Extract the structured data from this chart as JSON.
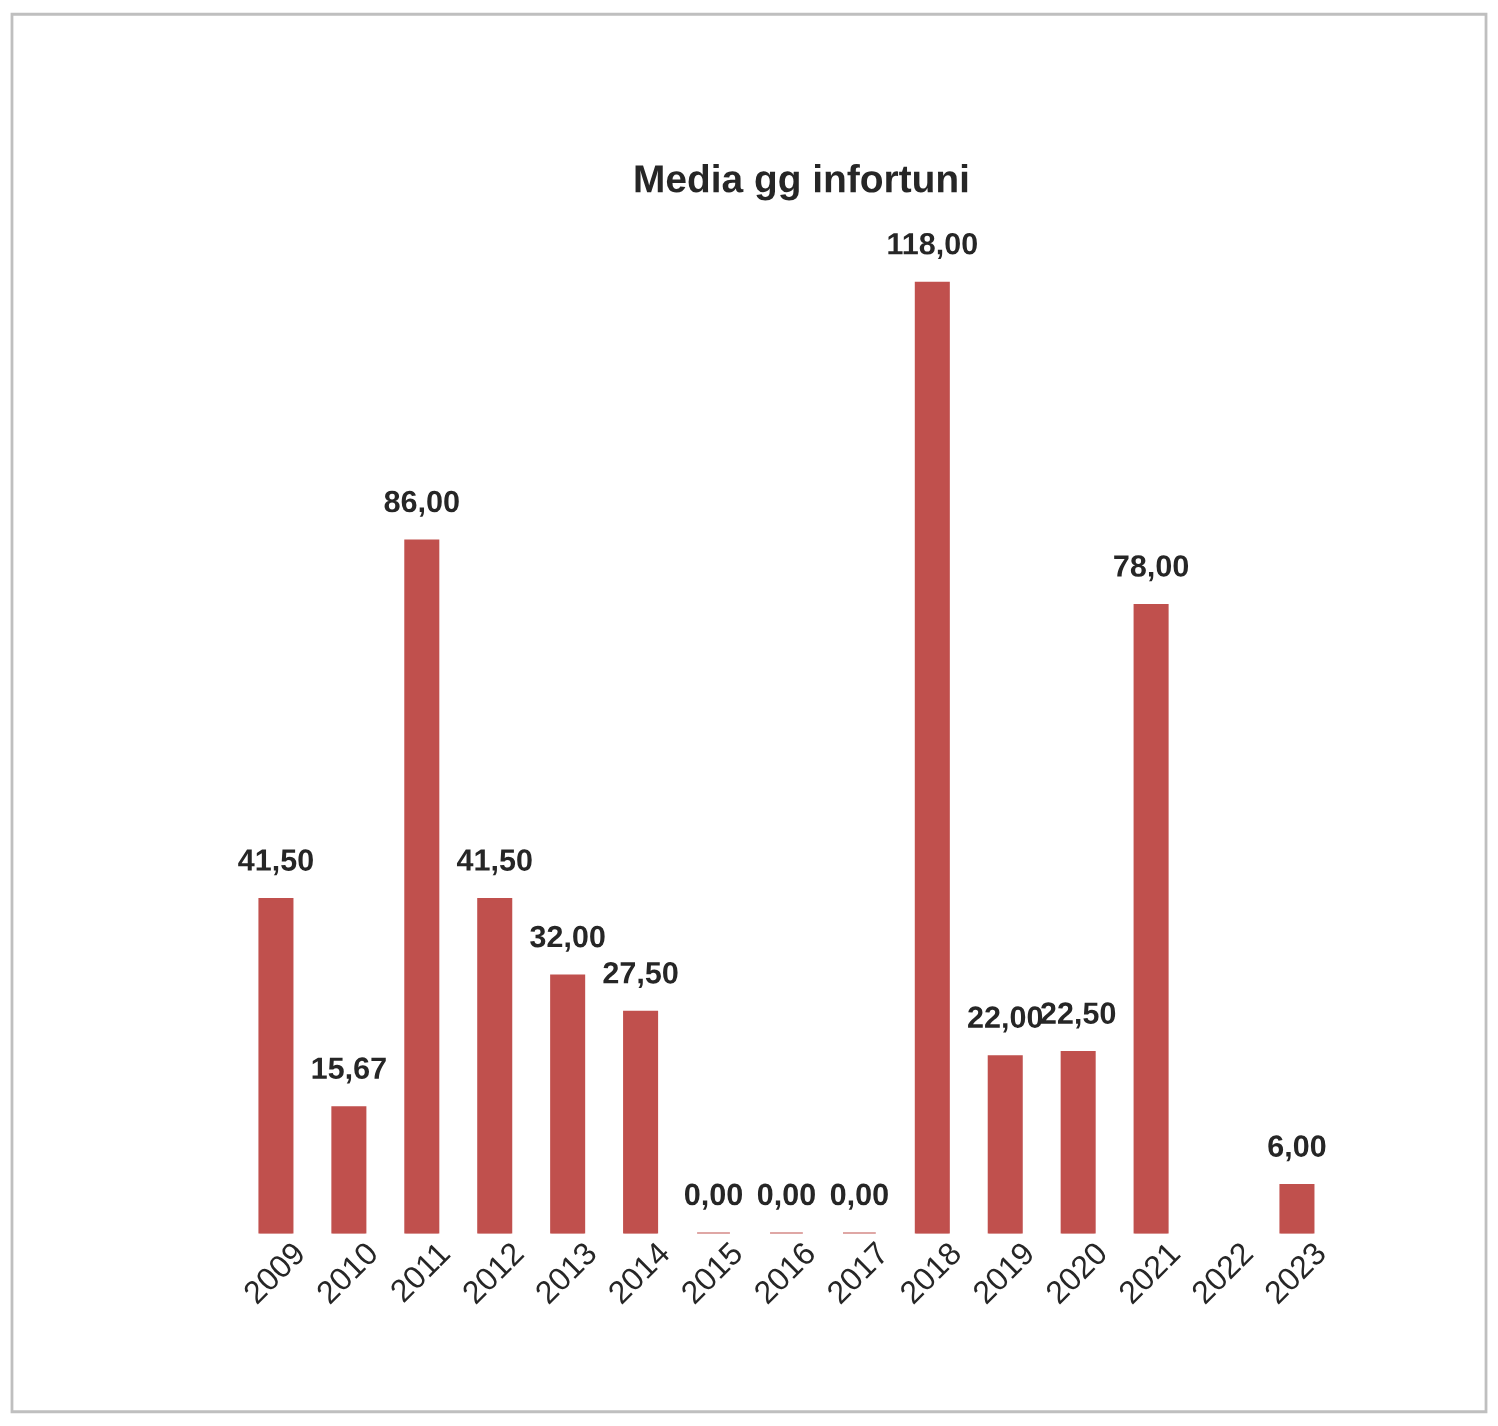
{
  "chart_data": {
    "type": "bar",
    "title": "Media gg infortuni",
    "categories": [
      "2009",
      "2010",
      "2011",
      "2012",
      "2013",
      "2014",
      "2015",
      "2016",
      "2017",
      "2018",
      "2019",
      "2020",
      "2021",
      "2022",
      "2023"
    ],
    "series": [
      {
        "color": "#c0504d",
        "values": [
          41.5,
          15.67,
          86,
          41.5,
          32,
          27.5,
          0,
          0,
          0,
          118,
          22,
          22.5,
          78,
          null,
          6
        ],
        "value_labels": [
          "41,50",
          "15,67",
          "86,00",
          "41,50",
          "32,00",
          "27,50",
          "0,00",
          "0,00",
          "0,00",
          "118,00",
          "22,00",
          "22,50",
          "78,00",
          null,
          "6,00"
        ]
      }
    ],
    "grid": false,
    "legend": false
  }
}
